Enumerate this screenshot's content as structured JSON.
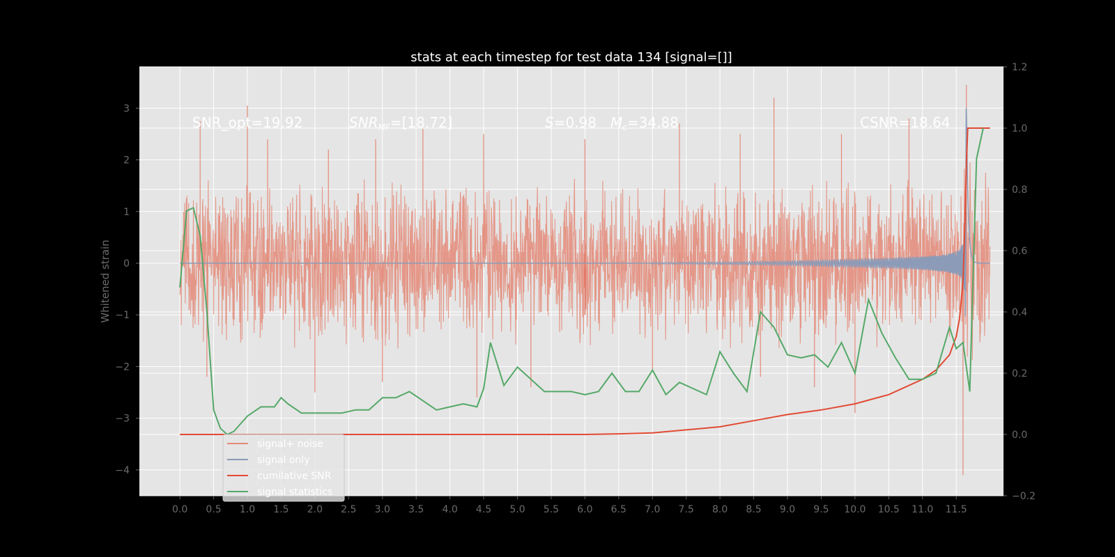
{
  "chart_data": {
    "type": "line",
    "title": "stats at each timestep for test data 134 [signal=[]]",
    "ylabel": "Whitened strain",
    "ylabel_right": "",
    "xlim": [
      -0.6,
      12.2
    ],
    "ylim": [
      -4.5,
      3.8
    ],
    "ylim_right": [
      -0.2,
      1.2
    ],
    "x_ticks": [
      "0.0",
      "0.5",
      "1.0",
      "1.5",
      "2.0",
      "2.5",
      "3.0",
      "3.5",
      "4.0",
      "4.5",
      "5.0",
      "5.5",
      "6.0",
      "6.5",
      "7.0",
      "7.5",
      "8.0",
      "8.5",
      "9.0",
      "9.5",
      "10.0",
      "10.5",
      "11.0",
      "11.5"
    ],
    "y_ticks": [
      "3",
      "2",
      "1",
      "0",
      "−1",
      "−2",
      "−3",
      "−4"
    ],
    "y_ticks_right": [
      "1.2",
      "1.0",
      "0.8",
      "0.6",
      "0.4",
      "0.2",
      "0.0",
      "−0.2"
    ],
    "grid": true,
    "legend_position": "lower-left",
    "annotations": {
      "snr_opt": "SNR_opt=19.92",
      "snr_mf_sym": "SNR",
      "snr_mf_sub": "MF",
      "snr_mf_val": "=[18.72]",
      "s_sym": "S",
      "s_val": "=0.98",
      "mc_sym": "M",
      "mc_sub": "c",
      "mc_val": "=34.88",
      "csnr": "CSNR=18.64"
    },
    "series": [
      {
        "name": "signal+ noise",
        "color": "#e48a78",
        "axis": "left",
        "envelope_t": [
          0,
          0.5,
          1,
          1.5,
          2,
          2.5,
          3,
          3.5,
          4,
          4.5,
          5,
          5.5,
          6,
          6.5,
          7,
          7.5,
          8,
          8.5,
          9,
          9.5,
          10,
          10.5,
          11,
          11.5,
          11.7,
          12.0
        ],
        "envelope_amp": [
          1.5,
          1.55,
          1.6,
          1.55,
          1.6,
          1.55,
          1.6,
          1.55,
          1.6,
          1.5,
          1.55,
          1.5,
          1.55,
          1.5,
          1.55,
          1.5,
          1.55,
          1.5,
          1.6,
          1.55,
          1.6,
          1.55,
          1.5,
          1.4,
          2.2,
          1.5
        ],
        "peaks": [
          [
            0.3,
            2.75
          ],
          [
            1.0,
            3.05
          ],
          [
            1.3,
            2.4
          ],
          [
            2.2,
            2.2
          ],
          [
            2.9,
            2.4
          ],
          [
            3.6,
            2.6
          ],
          [
            4.5,
            2.5
          ],
          [
            4.4,
            -2.6
          ],
          [
            6.0,
            2.4
          ],
          [
            7.4,
            2.7
          ],
          [
            8.3,
            2.5
          ],
          [
            8.8,
            3.2
          ],
          [
            8.6,
            -2.2
          ],
          [
            9.8,
            2.5
          ],
          [
            10.0,
            -2.9
          ],
          [
            10.8,
            2.8
          ],
          [
            11.6,
            -4.1
          ],
          [
            11.65,
            3.45
          ],
          [
            3.0,
            -2.3
          ],
          [
            5.2,
            -2.4
          ],
          [
            2.0,
            -2.5
          ],
          [
            0.4,
            -2.2
          ],
          [
            9.4,
            -2.4
          ],
          [
            7.0,
            -2.1
          ]
        ],
        "spike_t": 6.0,
        "spike_amp": 1.0,
        "end_t": 12.0
      },
      {
        "name": "signal only",
        "color": "#8b9bb8",
        "axis": "left",
        "t_start": 7.0,
        "t_peak": 11.65,
        "t_end": 12.0,
        "amp_start": 0.01,
        "amp_mid": 0.1,
        "amp_peak": 3.2
      },
      {
        "name": "cumilative SNR",
        "color": "#e24a33",
        "axis": "right",
        "x": [
          0,
          1,
          2,
          3,
          4,
          5,
          6,
          6.5,
          7,
          7.5,
          8,
          8.5,
          9,
          9.5,
          10,
          10.5,
          11,
          11.2,
          11.4,
          11.5,
          11.55,
          11.6,
          11.63,
          11.65,
          11.67,
          12.0
        ],
        "y": [
          0,
          0,
          0,
          0,
          0,
          0,
          0,
          0.002,
          0.005,
          0.015,
          0.025,
          0.045,
          0.065,
          0.08,
          0.1,
          0.13,
          0.18,
          0.21,
          0.26,
          0.32,
          0.38,
          0.5,
          0.7,
          0.88,
          1.0,
          1.0
        ]
      },
      {
        "name": "signal statistics",
        "color": "#55a868",
        "axis": "right",
        "x": [
          0,
          0.1,
          0.2,
          0.3,
          0.4,
          0.5,
          0.6,
          0.7,
          0.8,
          1.0,
          1.2,
          1.4,
          1.5,
          1.6,
          1.8,
          2.0,
          2.2,
          2.4,
          2.6,
          2.8,
          3.0,
          3.2,
          3.4,
          3.6,
          3.8,
          4.0,
          4.2,
          4.4,
          4.5,
          4.6,
          4.8,
          5.0,
          5.2,
          5.4,
          5.6,
          5.8,
          6.0,
          6.2,
          6.4,
          6.6,
          6.8,
          7.0,
          7.2,
          7.4,
          7.6,
          7.8,
          8.0,
          8.2,
          8.4,
          8.6,
          8.8,
          9.0,
          9.2,
          9.4,
          9.6,
          9.8,
          10.0,
          10.2,
          10.4,
          10.6,
          10.8,
          11.0,
          11.2,
          11.4,
          11.5,
          11.6,
          11.7,
          11.8,
          11.9
        ],
        "y": [
          0.48,
          0.73,
          0.74,
          0.65,
          0.4,
          0.08,
          0.02,
          0.0,
          0.01,
          0.06,
          0.09,
          0.09,
          0.12,
          0.1,
          0.07,
          0.07,
          0.07,
          0.07,
          0.08,
          0.08,
          0.12,
          0.12,
          0.14,
          0.11,
          0.08,
          0.09,
          0.1,
          0.09,
          0.15,
          0.3,
          0.16,
          0.22,
          0.18,
          0.14,
          0.14,
          0.14,
          0.13,
          0.14,
          0.2,
          0.14,
          0.14,
          0.21,
          0.13,
          0.17,
          0.15,
          0.13,
          0.27,
          0.2,
          0.14,
          0.4,
          0.35,
          0.26,
          0.25,
          0.26,
          0.22,
          0.3,
          0.2,
          0.44,
          0.33,
          0.25,
          0.18,
          0.18,
          0.2,
          0.35,
          0.28,
          0.3,
          0.14,
          0.9,
          1.0
        ]
      }
    ]
  }
}
